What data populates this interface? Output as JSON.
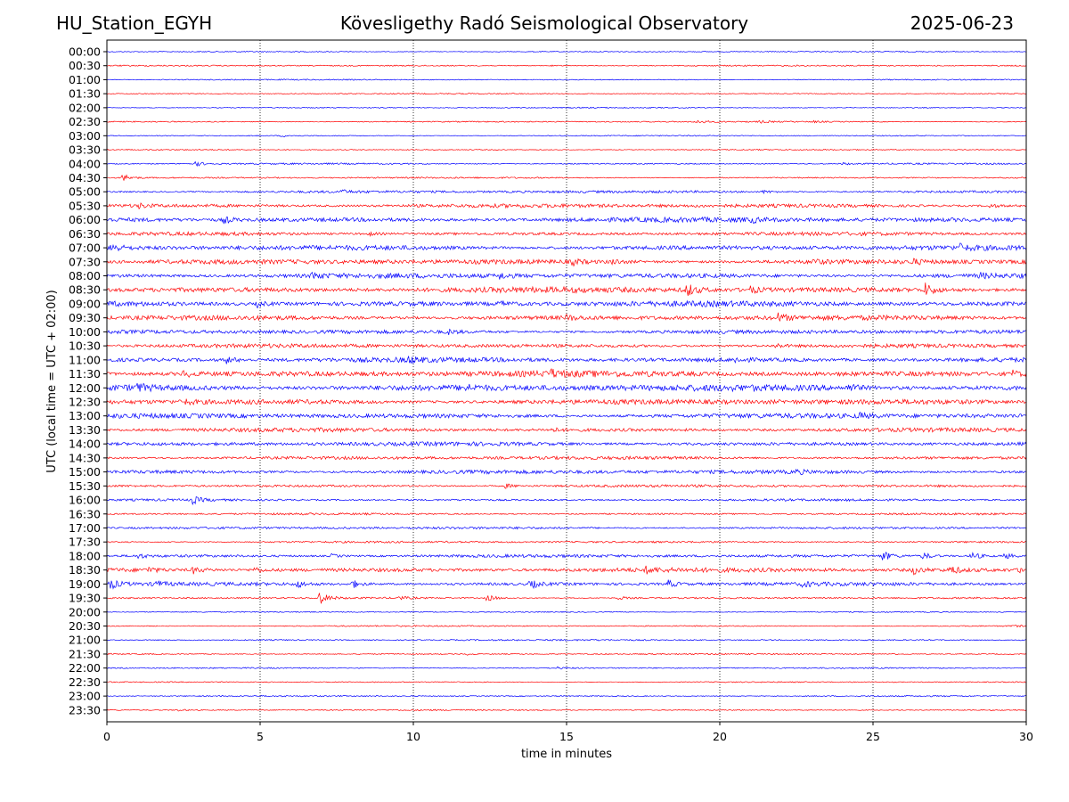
{
  "header": {
    "station": "HU_Station_EGYH",
    "title": "Kövesligethy Radó Seismological Observatory",
    "date": "2025-06-23"
  },
  "chart_data": {
    "type": "line",
    "title": "Kövesligethy Radó Seismological Observatory",
    "xlabel": "time in minutes",
    "ylabel": "UTC (local time = UTC + 02:00)",
    "xlim": [
      0,
      30
    ],
    "xticks": [
      0,
      5,
      10,
      15,
      20,
      25,
      30
    ],
    "grid": "vertical dotted at x ticks",
    "colors": [
      "#0000ff",
      "#ff0000"
    ],
    "rows": [
      {
        "label": "00:00",
        "noise": 0.5,
        "events": []
      },
      {
        "label": "00:30",
        "noise": 0.6,
        "events": [
          [
            14.5,
            0.8
          ]
        ]
      },
      {
        "label": "01:00",
        "noise": 0.5,
        "events": []
      },
      {
        "label": "01:30",
        "noise": 0.5,
        "events": []
      },
      {
        "label": "02:00",
        "noise": 0.5,
        "events": []
      },
      {
        "label": "02:30",
        "noise": 0.6,
        "events": [
          [
            19.2,
            2.5
          ],
          [
            21.3,
            1.2
          ],
          [
            23.0,
            1.0
          ]
        ]
      },
      {
        "label": "03:00",
        "noise": 0.5,
        "events": [
          [
            5.7,
            1.2
          ]
        ]
      },
      {
        "label": "03:30",
        "noise": 0.5,
        "events": []
      },
      {
        "label": "04:00",
        "noise": 0.7,
        "events": [
          [
            2.9,
            2.5
          ],
          [
            24.0,
            1.2
          ]
        ]
      },
      {
        "label": "04:30",
        "noise": 0.7,
        "events": [
          [
            0.5,
            4.5
          ]
        ]
      },
      {
        "label": "05:00",
        "noise": 1.2,
        "events": [
          [
            7.6,
            1.8
          ],
          [
            21.4,
            1.5
          ]
        ]
      },
      {
        "label": "05:30",
        "noise": 1.8,
        "events": [
          [
            1.0,
            2.5
          ],
          [
            28.8,
            2.0
          ]
        ]
      },
      {
        "label": "06:00",
        "noise": 2.2,
        "events": [
          [
            3.8,
            3.5
          ],
          [
            21.0,
            2.5
          ]
        ]
      },
      {
        "label": "06:30",
        "noise": 1.6,
        "events": [
          [
            8.5,
            2.0
          ]
        ]
      },
      {
        "label": "07:00",
        "noise": 2.2,
        "events": [
          [
            0.1,
            5.0
          ],
          [
            27.8,
            3.5
          ]
        ]
      },
      {
        "label": "07:30",
        "noise": 2.2,
        "events": [
          [
            15.2,
            3.0
          ],
          [
            16.5,
            3.0
          ],
          [
            23.0,
            2.8
          ],
          [
            26.3,
            2.5
          ]
        ]
      },
      {
        "label": "08:00",
        "noise": 2.2,
        "events": [
          [
            6.7,
            4.0
          ],
          [
            12.8,
            3.0
          ],
          [
            28.5,
            2.5
          ]
        ]
      },
      {
        "label": "08:30",
        "noise": 2.6,
        "events": [
          [
            18.9,
            7.5
          ],
          [
            26.7,
            7.0
          ],
          [
            21.0,
            3.0
          ]
        ]
      },
      {
        "label": "09:00",
        "noise": 2.5,
        "events": [
          [
            4.9,
            3.0
          ],
          [
            12.8,
            2.8
          ]
        ]
      },
      {
        "label": "09:30",
        "noise": 2.2,
        "events": [
          [
            21.9,
            4.0
          ],
          [
            15.0,
            2.5
          ]
        ]
      },
      {
        "label": "10:00",
        "noise": 1.8,
        "events": [
          [
            11.1,
            2.5
          ]
        ]
      },
      {
        "label": "10:30",
        "noise": 1.8,
        "events": [
          [
            21.8,
            2.5
          ]
        ]
      },
      {
        "label": "11:00",
        "noise": 2.2,
        "events": [
          [
            3.9,
            3.5
          ],
          [
            9.8,
            3.0
          ],
          [
            20.5,
            2.5
          ]
        ]
      },
      {
        "label": "11:30",
        "noise": 2.8,
        "events": [
          [
            2.5,
            3.5
          ],
          [
            14.5,
            3.0
          ],
          [
            29.5,
            3.5
          ]
        ]
      },
      {
        "label": "12:00",
        "noise": 3.0,
        "events": [
          [
            1.0,
            3.5
          ],
          [
            24.2,
            4.0
          ],
          [
            11.7,
            2.5
          ]
        ]
      },
      {
        "label": "12:30",
        "noise": 2.4,
        "events": [
          [
            2.5,
            2.5
          ]
        ]
      },
      {
        "label": "13:00",
        "noise": 2.2,
        "events": [
          [
            24.5,
            3.0
          ]
        ]
      },
      {
        "label": "13:30",
        "noise": 1.8,
        "events": [
          [
            14.5,
            2.0
          ]
        ]
      },
      {
        "label": "14:00",
        "noise": 1.8,
        "events": []
      },
      {
        "label": "14:30",
        "noise": 1.5,
        "events": []
      },
      {
        "label": "15:00",
        "noise": 1.8,
        "events": [
          [
            22.5,
            2.0
          ]
        ]
      },
      {
        "label": "15:30",
        "noise": 1.2,
        "events": [
          [
            13.0,
            2.5
          ]
        ]
      },
      {
        "label": "16:00",
        "noise": 1.0,
        "events": [
          [
            2.8,
            4.0
          ]
        ]
      },
      {
        "label": "16:30",
        "noise": 0.9,
        "events": []
      },
      {
        "label": "17:00",
        "noise": 1.1,
        "events": []
      },
      {
        "label": "17:30",
        "noise": 0.9,
        "events": []
      },
      {
        "label": "18:00",
        "noise": 1.4,
        "events": [
          [
            25.3,
            5.5
          ],
          [
            26.6,
            4.0
          ],
          [
            28.2,
            5.0
          ],
          [
            29.3,
            3.5
          ],
          [
            1.0,
            2.5
          ],
          [
            7.3,
            2.0
          ]
        ]
      },
      {
        "label": "18:30",
        "noise": 2.0,
        "events": [
          [
            1.3,
            3.0
          ],
          [
            2.8,
            3.5
          ],
          [
            4.8,
            3.0
          ],
          [
            26.3,
            4.5
          ],
          [
            27.5,
            5.0
          ],
          [
            29.8,
            3.5
          ],
          [
            17.6,
            3.0
          ]
        ]
      },
      {
        "label": "19:00",
        "noise": 1.6,
        "events": [
          [
            0.1,
            5.5
          ],
          [
            1.5,
            4.0
          ],
          [
            6.2,
            3.5
          ],
          [
            8.0,
            4.5
          ],
          [
            13.8,
            5.0
          ],
          [
            18.3,
            4.0
          ],
          [
            22.7,
            3.0
          ]
        ]
      },
      {
        "label": "19:30",
        "noise": 0.8,
        "events": [
          [
            6.9,
            8.0
          ],
          [
            12.4,
            4.0
          ],
          [
            9.5,
            2.0
          ],
          [
            16.7,
            2.0
          ]
        ]
      },
      {
        "label": "20:00",
        "noise": 0.5,
        "events": []
      },
      {
        "label": "20:30",
        "noise": 0.6,
        "events": [
          [
            29.5,
            1.0
          ]
        ]
      },
      {
        "label": "21:00",
        "noise": 0.7,
        "events": [
          [
            29.8,
            1.5
          ]
        ]
      },
      {
        "label": "21:30",
        "noise": 0.6,
        "events": [
          [
            11.7,
            1.0
          ],
          [
            25.5,
            1.0
          ]
        ]
      },
      {
        "label": "22:00",
        "noise": 0.6,
        "events": [
          [
            14.7,
            1.3
          ]
        ]
      },
      {
        "label": "22:30",
        "noise": 0.5,
        "events": []
      },
      {
        "label": "23:00",
        "noise": 0.6,
        "events": []
      },
      {
        "label": "23:30",
        "noise": 0.6,
        "events": [
          [
            2.3,
            1.0
          ]
        ]
      }
    ]
  }
}
